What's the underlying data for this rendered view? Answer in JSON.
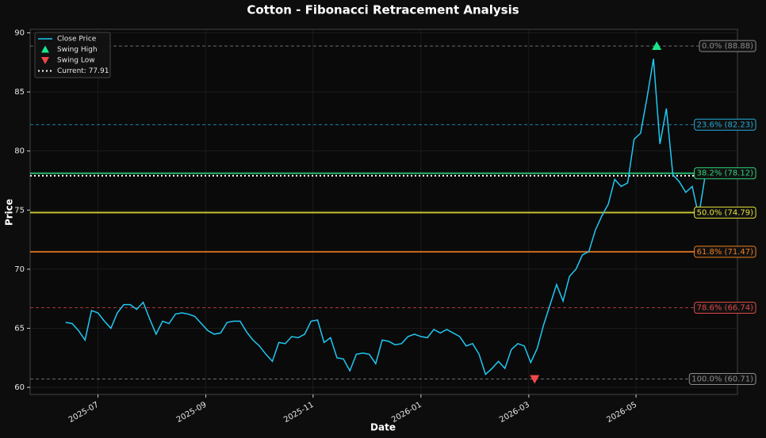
{
  "chart_data": {
    "type": "line",
    "title": "Cotton - Fibonacci Retracement Analysis",
    "xlabel": "Date",
    "ylabel": "Price",
    "x": [
      2025.45,
      2025.46,
      2025.47,
      2025.48,
      2025.49,
      2025.5,
      2025.51,
      2025.52,
      2025.53,
      2025.54,
      2025.55,
      2025.56,
      2025.57,
      2025.58,
      2025.59,
      2025.6,
      2025.61,
      2025.62,
      2025.63,
      2025.64,
      2025.65,
      2025.66,
      2025.67,
      2025.68,
      2025.69,
      2025.7,
      2025.71,
      2025.72,
      2025.73,
      2025.74,
      2025.75,
      2025.76,
      2025.77,
      2025.78,
      2025.79,
      2025.8,
      2025.81,
      2025.82,
      2025.83,
      2025.84,
      2025.85,
      2025.86,
      2025.87,
      2025.88,
      2025.89,
      2025.9,
      2025.91,
      2025.92,
      2025.93,
      2025.94,
      2025.95,
      2025.96,
      2025.97,
      2025.98,
      2025.99,
      2026.0,
      2026.01,
      2026.02,
      2026.03,
      2026.04,
      2026.05,
      2026.06,
      2026.07,
      2026.08,
      2026.09,
      2026.1,
      2026.11,
      2026.12,
      2026.13,
      2026.14,
      2026.15,
      2026.16,
      2026.17,
      2026.18,
      2026.19,
      2026.2,
      2026.21,
      2026.22,
      2026.23,
      2026.24,
      2026.25,
      2026.26,
      2026.27,
      2026.28,
      2026.29,
      2026.3,
      2026.31,
      2026.32,
      2026.33,
      2026.34,
      2026.35,
      2026.36,
      2026.37,
      2026.38,
      2026.39,
      2026.4,
      2026.41,
      2026.42,
      2026.43,
      2026.44
    ],
    "series": [
      {
        "name": "Close Price",
        "color": "#1fc8f2",
        "values": [
          65.5,
          65.4,
          64.8,
          64.0,
          66.5,
          66.3,
          65.6,
          65.0,
          66.3,
          67.0,
          67.0,
          66.6,
          67.2,
          65.8,
          64.5,
          65.6,
          65.4,
          66.2,
          66.3,
          66.2,
          66.0,
          65.4,
          64.8,
          64.5,
          64.6,
          65.5,
          65.6,
          65.6,
          64.7,
          64.0,
          63.5,
          62.8,
          62.2,
          63.8,
          63.7,
          64.3,
          64.2,
          64.5,
          65.6,
          65.7,
          63.8,
          64.2,
          62.5,
          62.4,
          61.4,
          62.8,
          62.9,
          62.8,
          62.0,
          64.0,
          63.9,
          63.6,
          63.7,
          64.3,
          64.5,
          64.3,
          64.2,
          64.9,
          64.6,
          64.9,
          64.6,
          64.3,
          63.5,
          63.7,
          62.8,
          61.1,
          61.6,
          62.2,
          61.6,
          63.2,
          63.7,
          63.5,
          62.1,
          63.3,
          65.3,
          67.0,
          68.7,
          67.3,
          69.4,
          70.0,
          71.2,
          71.5,
          73.3,
          74.5,
          75.5,
          77.6,
          77.0,
          77.3,
          81.0,
          81.5,
          84.5,
          87.8,
          80.6,
          83.6,
          78.0,
          77.4,
          76.5,
          77.0,
          74.5,
          77.9
        ]
      }
    ],
    "markers": [
      {
        "name": "Swing High",
        "x": 2026.365,
        "y": 88.88,
        "color": "#19e68c",
        "symbol": "triangle-up"
      },
      {
        "name": "Swing Low",
        "x": 2026.176,
        "y": 60.71,
        "color": "#f04848",
        "symbol": "triangle-down"
      }
    ],
    "hline": {
      "name": "Current: 77.91",
      "value": 77.91,
      "color": "#ffffff"
    },
    "levels": [
      {
        "label": "0.0% (88.88)",
        "value": 88.88,
        "color": "#8c8c8c",
        "style": "dashed"
      },
      {
        "label": "23.6% (82.23)",
        "value": 82.23,
        "color": "#22a9d6",
        "style": "dashed"
      },
      {
        "label": "38.2% (78.12)",
        "value": 78.12,
        "color": "#2fd37a",
        "style": "solid"
      },
      {
        "label": "50.0% (74.79)",
        "value": 74.79,
        "color": "#e6e33a",
        "style": "solid"
      },
      {
        "label": "61.8% (71.47)",
        "value": 71.47,
        "color": "#ec7f22",
        "style": "solid"
      },
      {
        "label": "78.6% (66.74)",
        "value": 66.74,
        "color": "#e04848",
        "style": "dashed"
      },
      {
        "label": "100.0% (60.71)",
        "value": 60.71,
        "color": "#8c8c8c",
        "style": "dashed"
      }
    ],
    "xlim": [
      2025.395,
      2026.49
    ],
    "ylim": [
      59.4,
      90.3
    ],
    "xticks": [
      {
        "value": 2025.5,
        "label": "2025-07"
      },
      {
        "value": 2025.667,
        "label": "2025-09"
      },
      {
        "value": 2025.833,
        "label": "2025-11"
      },
      {
        "value": 2026.0,
        "label": "2026-01"
      },
      {
        "value": 2026.167,
        "label": "2026-03"
      },
      {
        "value": 2026.333,
        "label": "2026-05"
      }
    ],
    "yticks": [
      60,
      65,
      70,
      75,
      80,
      85,
      90
    ],
    "grid": true,
    "legend": "upper left"
  }
}
